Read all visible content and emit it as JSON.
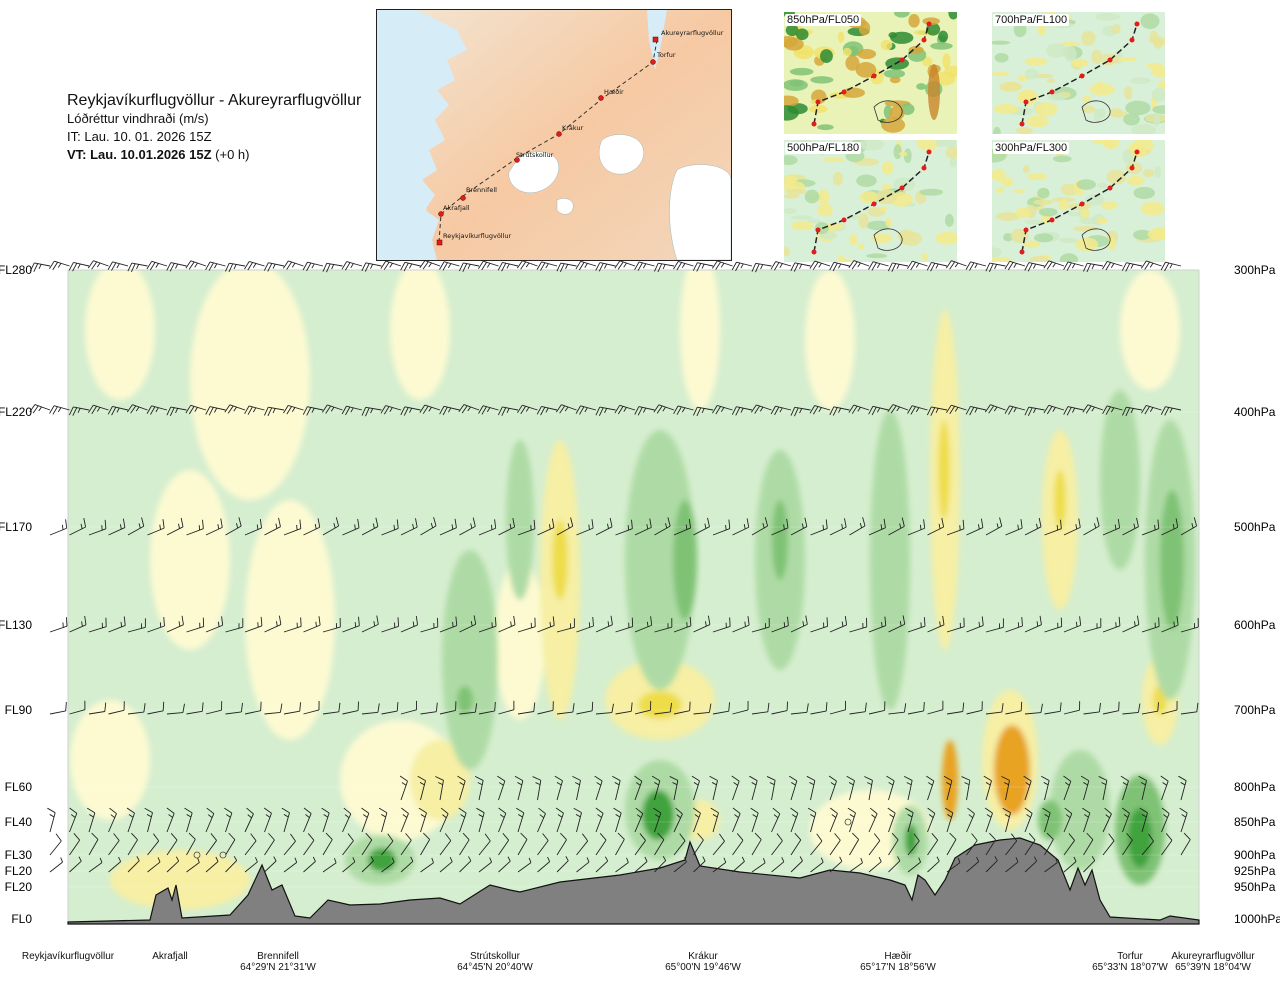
{
  "title": {
    "route": "Reykjavíkurflugvöllur - Akureyrarflugvöllur",
    "subtitle": "Lóðréttur vindhraði (m/s)",
    "it": "IT: Lau. 10. 01. 2026 15Z",
    "vt": "VT: Lau. 10.01.2026 15Z",
    "vt_offset": "(+0 h)"
  },
  "map": {
    "places": [
      "Akureyrarflugvöllur",
      "Torfur",
      "Hæðir",
      "Krákur",
      "Strútskollur",
      "Brennifell",
      "Akrafjall",
      "Reykjavíkurflugvöllur"
    ]
  },
  "thumbnails": [
    {
      "label": "850hPa/FL050"
    },
    {
      "label": "700hPa/FL100"
    },
    {
      "label": "500hPa/FL180"
    },
    {
      "label": "300hPa/FL300"
    }
  ],
  "colors": {
    "green1": "#d5eecf",
    "green2": "#aedba5",
    "green3": "#7fc275",
    "green4": "#3fa33c",
    "green5": "#1f7d24",
    "yellow1": "#fdfad2",
    "yellow2": "#f6efa4",
    "yellow3": "#eedd4a",
    "orange": "#e8a322",
    "terrain": "#808080"
  },
  "chart_data": {
    "type": "heatmap",
    "variable": "Lóðréttur vindhraði (m/s)",
    "flight_levels": [
      "FL280",
      "FL220",
      "FL170",
      "FL130",
      "FL90",
      "FL60",
      "FL40",
      "FL30",
      "FL20",
      "FL20",
      "FL0"
    ],
    "pressure_levels": [
      "300hPa",
      "400hPa",
      "500hPa",
      "600hPa",
      "700hPa",
      "800hPa",
      "850hPa",
      "900hPa",
      "925hPa",
      "950hPa",
      "1000hPa"
    ],
    "wind_barb_levels": [
      "300hPa",
      "400hPa",
      "500hPa",
      "600hPa",
      "700hPa",
      "800hPa",
      "850hPa",
      "900hPa",
      "925hPa"
    ],
    "stations": [
      {
        "name": "Reykjavíkurflugvöllur",
        "coord": ""
      },
      {
        "name": "Akrafjall",
        "coord": ""
      },
      {
        "name": "Brennifell",
        "coord": "64°29'N 21°31'W"
      },
      {
        "name": "Strútskollur",
        "coord": "64°45'N 20°40'W"
      },
      {
        "name": "Krákur",
        "coord": "65°00'N 19°46'W"
      },
      {
        "name": "Hæðir",
        "coord": "65°17'N 18°56'W"
      },
      {
        "name": "Torfur",
        "coord": "65°33'N 18°07'W"
      },
      {
        "name": "Akureyrarflugvöllur",
        "coord": "65°39'N 18°04'W"
      }
    ],
    "terrain": "gray silhouette along route",
    "grid": true,
    "legend": "none"
  }
}
